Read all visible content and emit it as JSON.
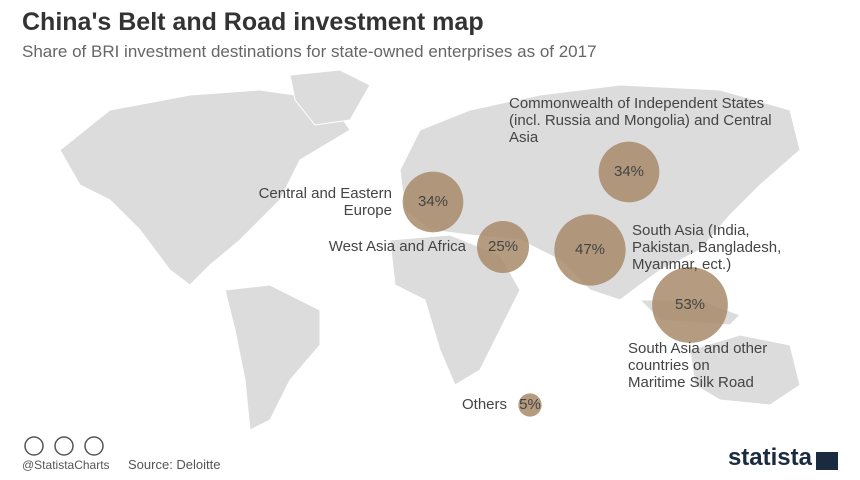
{
  "chart_data": {
    "type": "bubble",
    "title": "China's Belt and Road investment map",
    "subtitle": "Share of BRI investment destinations for state-owned enterprises as of 2017",
    "categories": [
      "Commonwealth of Independent States (incl. Russia and Mongolia) and Central Asia",
      "Central and Eastern Europe",
      "West Asia and Africa",
      "South Asia (India, Pakistan, Bangladesh, Myanmar, ect.)",
      "South Asia and other countries on Maritime Silk Road",
      "Others"
    ],
    "values": [
      34,
      34,
      25,
      47,
      53,
      5
    ],
    "value_labels": [
      "34%",
      "34%",
      "25%",
      "47%",
      "53%",
      "5%"
    ],
    "color": "#a8896a",
    "source": "Source: Deloitte",
    "handle": "@StatistaCharts",
    "brand": "statista"
  }
}
